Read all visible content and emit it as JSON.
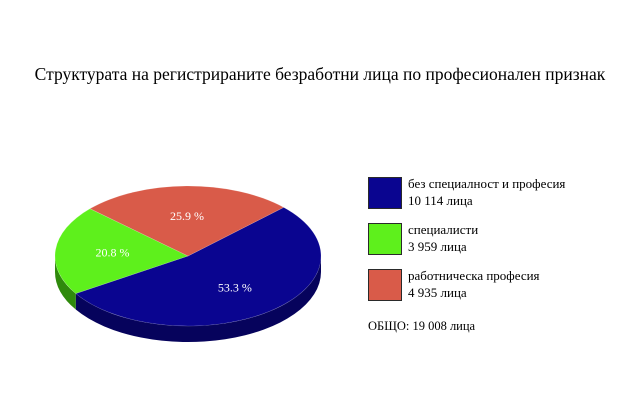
{
  "title": "Структурата на регистрираните безработни лица по професионален признак",
  "chart_data": {
    "type": "pie",
    "title": "Структурата на регистрираните безработни лица по професионален признак",
    "slices": [
      {
        "label": "без специалност и професия",
        "value": 10114,
        "unit": "лица",
        "value_text": "10 114 лица",
        "percent": 53.3,
        "percent_text": "53.3 %",
        "color": "#0a0590",
        "side_color": "#06035c"
      },
      {
        "label": "специалисти",
        "value": 3959,
        "unit": "лица",
        "value_text": "3 959 лица",
        "percent": 20.8,
        "percent_text": "20.8 %",
        "color": "#5ef01c",
        "side_color": "#2f8a0c"
      },
      {
        "label": "работническа професия",
        "value": 4935,
        "unit": "лица",
        "value_text": "4 935 лица",
        "percent": 25.9,
        "percent_text": "25.9 %",
        "color": "#d95b49",
        "side_color": "#9a3528"
      }
    ],
    "total_text": "ОБЩО: 19 008 лица",
    "legend_position": "right"
  }
}
